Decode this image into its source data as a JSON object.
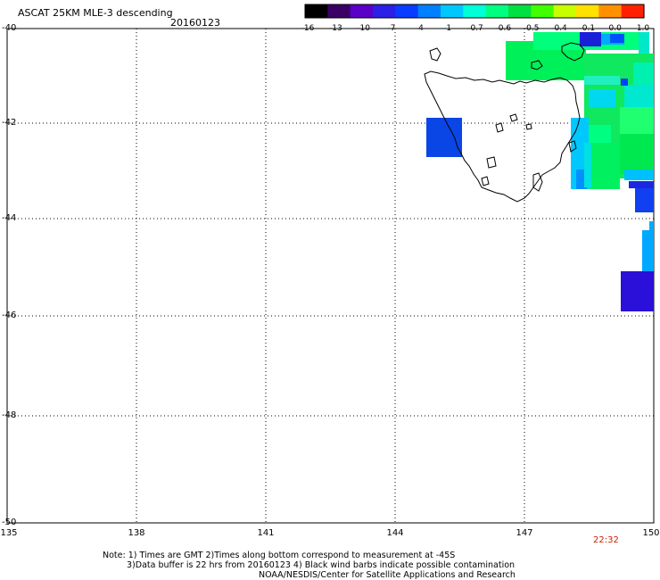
{
  "header": {
    "title": "ASCAT 25KM MLE-3 descending",
    "date": "20160123"
  },
  "colorbar": {
    "labels": [
      "-16",
      "-13",
      "-10",
      "-7",
      "-4",
      "-1",
      "-0.7",
      "-0.6",
      "-0.5",
      "-0.4",
      "-0.1",
      "0.0",
      "1.0"
    ],
    "colors": [
      "#000000",
      "#3a0066",
      "#5a00c8",
      "#2c1fe6",
      "#0a3cff",
      "#0080ff",
      "#00c8ff",
      "#00ffd8",
      "#00ff80",
      "#00e040",
      "#40ff00",
      "#c8ff00",
      "#ffe000",
      "#ff9000",
      "#ff2000"
    ]
  },
  "axes": {
    "lat_labels": [
      "-40",
      "-42",
      "-44",
      "-46",
      "-48",
      "-50"
    ],
    "lon_labels": [
      "135",
      "138",
      "141",
      "144",
      "147",
      "150"
    ]
  },
  "time_label": "22:32",
  "notes": {
    "line1": "Note: 1) Times are GMT 2)Times along bottom correspond to measurement at -45S",
    "line2": "3)Data buffer is 22 hrs from 20160123 4) Black wind barbs indicate possible contamination",
    "line3": "NOAA/NESDIS/Center for Satellite Applications and Research"
  },
  "map_data": {
    "region": "Tasmania",
    "lon_range": [
      135,
      150
    ],
    "lat_range": [
      -50,
      -40
    ]
  }
}
